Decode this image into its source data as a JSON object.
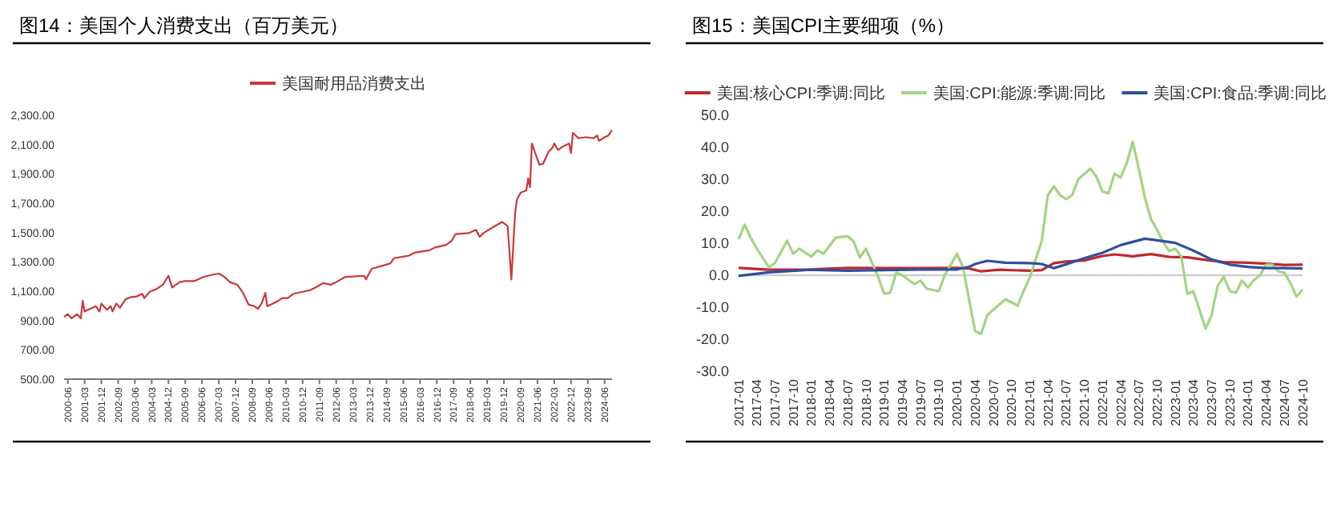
{
  "chart_data": [
    {
      "type": "line",
      "title": "图14：美国个人消费支出（百万美元）",
      "legend": "top",
      "xlim": [
        "2000-04",
        "2024-10"
      ],
      "ylim": [
        500,
        2300
      ],
      "xticks": [
        "2000-06",
        "2001-03",
        "2001-12",
        "2002-09",
        "2003-06",
        "2004-03",
        "2004-12",
        "2005-09",
        "2006-06",
        "2007-03",
        "2007-12",
        "2008-09",
        "2009-06",
        "2010-03",
        "2010-12",
        "2011-09",
        "2012-06",
        "2013-03",
        "2013-12",
        "2014-09",
        "2015-06",
        "2016-03",
        "2016-12",
        "2017-09",
        "2018-06",
        "2019-03",
        "2019-12",
        "2020-09",
        "2021-06",
        "2022-03",
        "2022-12",
        "2023-09",
        "2024-06"
      ],
      "yticks": [
        {
          "value": 500,
          "label": "500.00"
        },
        {
          "value": 700,
          "label": "700.00"
        },
        {
          "value": 900,
          "label": "900.00"
        },
        {
          "value": 1100,
          "label": "1,100.00"
        },
        {
          "value": 1300,
          "label": "1,300.00"
        },
        {
          "value": 1500,
          "label": "1,500.00"
        },
        {
          "value": 1700,
          "label": "1,700.00"
        },
        {
          "value": 1900,
          "label": "1,900.00"
        },
        {
          "value": 2100,
          "label": "2,100.00"
        },
        {
          "value": 2300,
          "label": "2,300.00"
        }
      ],
      "series": [
        {
          "name": "美国耐用品消费支出",
          "color": "#c8383a",
          "x": [
            "2000-04",
            "2000-06",
            "2000-08",
            "2000-11",
            "2001-01",
            "2001-02",
            "2001-03",
            "2001-06",
            "2001-09",
            "2001-11",
            "2001-12",
            "2002-03",
            "2002-05",
            "2002-06",
            "2002-08",
            "2002-10",
            "2003-01",
            "2003-04",
            "2003-07",
            "2003-10",
            "2003-11",
            "2004-02",
            "2004-06",
            "2004-09",
            "2004-12",
            "2005-02",
            "2005-06",
            "2005-09",
            "2006-02",
            "2006-07",
            "2006-12",
            "2007-03",
            "2007-06",
            "2007-09",
            "2008-01",
            "2008-04",
            "2008-07",
            "2008-10",
            "2008-12",
            "2009-02",
            "2009-04",
            "2009-05",
            "2009-08",
            "2009-11",
            "2010-01",
            "2010-04",
            "2010-07",
            "2010-12",
            "2011-04",
            "2011-08",
            "2011-11",
            "2012-03",
            "2012-06",
            "2012-11",
            "2013-09",
            "2013-10",
            "2014-01",
            "2014-11",
            "2015-01",
            "2015-09",
            "2015-12",
            "2016-08",
            "2016-11",
            "2017-05",
            "2017-08",
            "2017-10",
            "2018-05",
            "2018-09",
            "2018-11",
            "2019-01",
            "2019-07",
            "2019-11",
            "2020-01",
            "2020-02",
            "2020-04",
            "2020-06",
            "2020-07",
            "2020-09",
            "2020-12",
            "2021-01",
            "2021-02",
            "2021-03",
            "2021-05",
            "2021-07",
            "2021-09",
            "2021-12",
            "2022-02",
            "2022-03",
            "2022-05",
            "2022-08",
            "2022-11",
            "2022-12",
            "2023-01",
            "2023-04",
            "2023-08",
            "2023-12",
            "2024-02",
            "2024-03",
            "2024-06",
            "2024-08",
            "2024-10"
          ],
          "values": [
            925,
            944,
            915,
            944,
            915,
            1035,
            962,
            980,
            998,
            962,
            1016,
            973,
            998,
            962,
            1016,
            987,
            1045,
            1060,
            1064,
            1082,
            1053,
            1096,
            1118,
            1144,
            1205,
            1125,
            1162,
            1169,
            1169,
            1198,
            1213,
            1220,
            1198,
            1162,
            1144,
            1089,
            1009,
            998,
            980,
            1016,
            1089,
            998,
            1016,
            1035,
            1053,
            1053,
            1082,
            1096,
            1107,
            1133,
            1155,
            1144,
            1162,
            1198,
            1205,
            1180,
            1253,
            1289,
            1325,
            1343,
            1362,
            1379,
            1398,
            1416,
            1445,
            1489,
            1496,
            1518,
            1471,
            1496,
            1543,
            1572,
            1554,
            1543,
            1180,
            1635,
            1725,
            1772,
            1787,
            1870,
            1809,
            2107,
            2034,
            1962,
            1969,
            2052,
            2077,
            2107,
            2063,
            2089,
            2107,
            2041,
            2180,
            2143,
            2150,
            2143,
            2161,
            2125,
            2150,
            2161,
            2198
          ]
        }
      ]
    },
    {
      "type": "line",
      "title": "图15：美国CPI主要细项（%）",
      "legend": "top",
      "xlim": [
        "2017-01",
        "2024-10"
      ],
      "ylim": [
        -30,
        50
      ],
      "xticks": [
        "2017-01",
        "2017-04",
        "2017-07",
        "2017-10",
        "2018-01",
        "2018-04",
        "2018-07",
        "2018-10",
        "2019-01",
        "2019-04",
        "2019-07",
        "2019-10",
        "2020-01",
        "2020-04",
        "2020-07",
        "2020-10",
        "2021-01",
        "2021-04",
        "2021-07",
        "2021-10",
        "2022-01",
        "2022-04",
        "2022-07",
        "2022-10",
        "2023-01",
        "2023-04",
        "2023-07",
        "2023-10",
        "2024-01",
        "2024-04",
        "2024-07",
        "2024-10"
      ],
      "yticks": [
        {
          "value": -30,
          "label": "-30.0"
        },
        {
          "value": -20,
          "label": "-20.0"
        },
        {
          "value": -10,
          "label": "-10.0"
        },
        {
          "value": 0,
          "label": "0.0"
        },
        {
          "value": 10,
          "label": "10.0"
        },
        {
          "value": 20,
          "label": "20.0"
        },
        {
          "value": 30,
          "label": "30.0"
        },
        {
          "value": 40,
          "label": "40.0"
        },
        {
          "value": 50,
          "label": "50.0"
        }
      ],
      "ref_lines": [
        {
          "axis": "y",
          "value": 0,
          "color": "#d0d0d0"
        }
      ],
      "series": [
        {
          "name": "美国:核心CPI:季调:同比",
          "color": "#c0282c",
          "x": [
            "2017-01",
            "2017-06",
            "2018-01",
            "2018-07",
            "2019-01",
            "2019-07",
            "2020-01",
            "2020-03",
            "2020-05",
            "2020-08",
            "2021-01",
            "2021-03",
            "2021-05",
            "2021-07",
            "2021-10",
            "2022-01",
            "2022-03",
            "2022-06",
            "2022-09",
            "2022-12",
            "2023-03",
            "2023-06",
            "2023-09",
            "2024-01",
            "2024-04",
            "2024-07",
            "2024-10"
          ],
          "values": [
            2.3,
            1.7,
            1.8,
            2.3,
            2.2,
            2.2,
            2.3,
            2.1,
            1.2,
            1.7,
            1.4,
            1.6,
            3.8,
            4.3,
            4.6,
            6.0,
            6.5,
            5.9,
            6.6,
            5.7,
            5.6,
            4.8,
            4.1,
            3.9,
            3.6,
            3.2,
            3.3
          ]
        },
        {
          "name": "美国:CPI:能源:季调:同比",
          "color": "#a3d483",
          "x": [
            "2017-01",
            "2017-02",
            "2017-03",
            "2017-04",
            "2017-06",
            "2017-07",
            "2017-09",
            "2017-10",
            "2017-11",
            "2018-01",
            "2018-02",
            "2018-03",
            "2018-05",
            "2018-07",
            "2018-08",
            "2018-09",
            "2018-10",
            "2018-12",
            "2019-01",
            "2019-02",
            "2019-03",
            "2019-04",
            "2019-06",
            "2019-07",
            "2019-08",
            "2019-10",
            "2019-11",
            "2020-01",
            "2020-02",
            "2020-04",
            "2020-05",
            "2020-06",
            "2020-07",
            "2020-09",
            "2020-11",
            "2020-12",
            "2021-01",
            "2021-03",
            "2021-04",
            "2021-05",
            "2021-06",
            "2021-07",
            "2021-08",
            "2021-09",
            "2021-11",
            "2021-12",
            "2022-01",
            "2022-02",
            "2022-03",
            "2022-04",
            "2022-05",
            "2022-06",
            "2022-07",
            "2022-08",
            "2022-09",
            "2022-10",
            "2022-11",
            "2022-12",
            "2023-01",
            "2023-02",
            "2023-03",
            "2023-04",
            "2023-05",
            "2023-06",
            "2023-07",
            "2023-08",
            "2023-09",
            "2023-10",
            "2023-11",
            "2023-12",
            "2024-01",
            "2024-02",
            "2024-03",
            "2024-04",
            "2024-05",
            "2024-06",
            "2024-07",
            "2024-08",
            "2024-09",
            "2024-10"
          ],
          "values": [
            11.2,
            15.8,
            11.7,
            8.3,
            2.5,
            3.8,
            10.8,
            6.7,
            8.3,
            5.8,
            7.8,
            6.7,
            11.7,
            12.2,
            10.5,
            5.5,
            8.3,
            -0.5,
            -5.8,
            -5.5,
            0.8,
            0,
            -2.8,
            -1.7,
            -4.2,
            -5,
            0,
            6.7,
            2.5,
            -17.5,
            -18.3,
            -12.5,
            -10.8,
            -7.5,
            -9.5,
            -5,
            -0.8,
            10.8,
            25,
            27.8,
            25,
            23.8,
            25,
            30,
            33.3,
            30.8,
            26.2,
            25.6,
            31.7,
            30.5,
            35,
            41.7,
            33.3,
            24.2,
            17.5,
            14.2,
            10.5,
            7.5,
            8.3,
            5.8,
            -5.8,
            -5,
            -10.8,
            -16.7,
            -12.5,
            -3.3,
            -0.5,
            -5,
            -5.5,
            -1.7,
            -3.8,
            -1.5,
            0,
            3.3,
            3.3,
            1.2,
            0.8,
            -2.5,
            -6.7,
            -4.5
          ]
        },
        {
          "name": "美国:CPI:食品:季调:同比",
          "color": "#2e4fa0",
          "x": [
            "2017-01",
            "2017-06",
            "2018-01",
            "2018-07",
            "2019-01",
            "2019-07",
            "2020-01",
            "2020-03",
            "2020-04",
            "2020-06",
            "2020-09",
            "2021-01",
            "2021-03",
            "2021-05",
            "2021-07",
            "2021-10",
            "2022-01",
            "2022-04",
            "2022-08",
            "2022-10",
            "2023-01",
            "2023-04",
            "2023-07",
            "2023-10",
            "2024-01",
            "2024-04",
            "2024-07",
            "2024-10"
          ],
          "values": [
            -0.2,
            0.9,
            1.7,
            1.4,
            1.6,
            1.8,
            1.8,
            2.6,
            3.5,
            4.5,
            3.9,
            3.8,
            3.5,
            2.2,
            3.4,
            5.3,
            7.0,
            9.4,
            11.4,
            10.9,
            10.1,
            7.7,
            4.9,
            3.3,
            2.6,
            2.2,
            2.2,
            2.1
          ]
        }
      ]
    }
  ]
}
